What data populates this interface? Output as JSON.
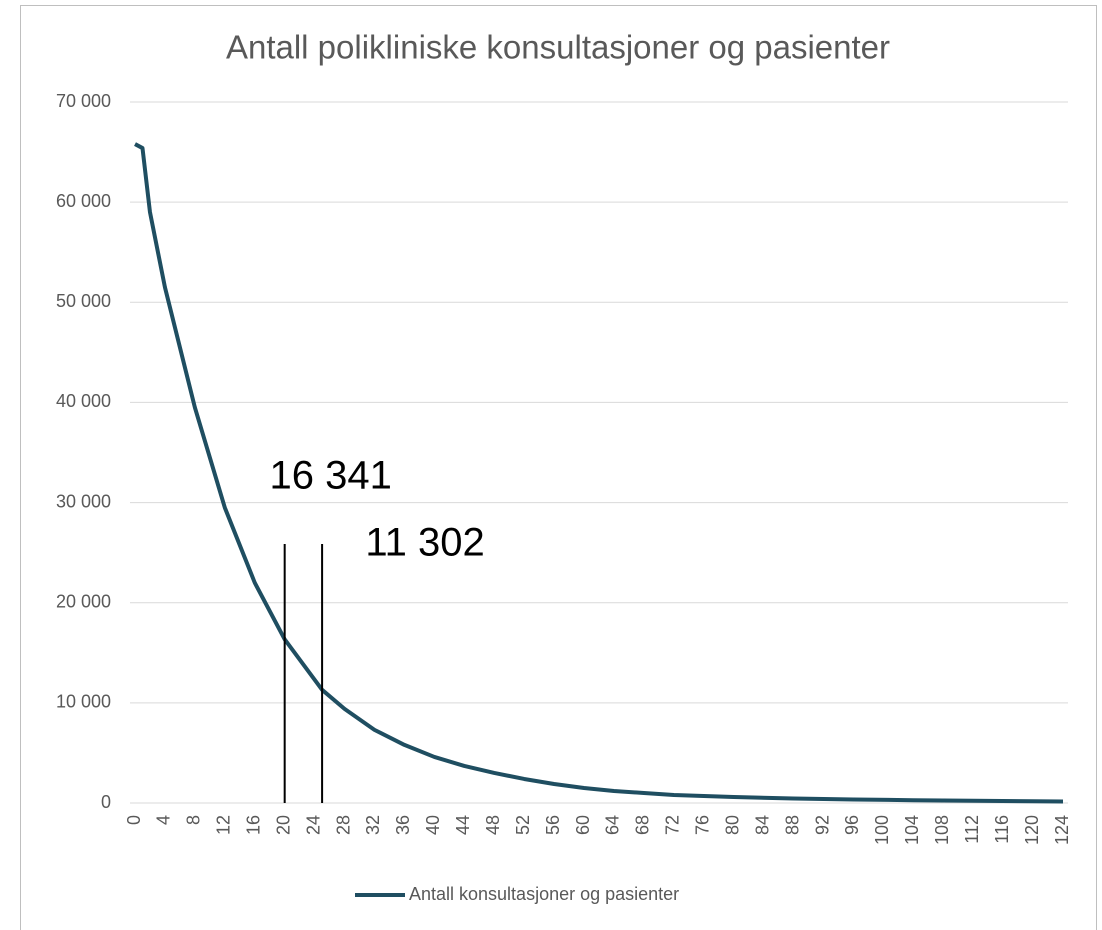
{
  "chart_data": {
    "type": "line",
    "title": "Antall polikliniske konsultasjoner og pasienter",
    "x": [
      0,
      1,
      2,
      4,
      8,
      12,
      16,
      20,
      25,
      28,
      32,
      36,
      40,
      44,
      48,
      52,
      56,
      60,
      64,
      68,
      72,
      80,
      88,
      96,
      104,
      112,
      120,
      124
    ],
    "series": [
      {
        "name": "Antall konsultasjoner og pasienter",
        "color": "#1f4e61",
        "values": [
          65800,
          65400,
          59000,
          51500,
          39500,
          29500,
          22000,
          16341,
          11302,
          9400,
          7300,
          5800,
          4600,
          3700,
          3000,
          2400,
          1900,
          1500,
          1200,
          1000,
          800,
          600,
          450,
          350,
          280,
          220,
          170,
          150
        ]
      }
    ],
    "xlim": [
      0,
      124
    ],
    "xticks": [
      0,
      4,
      8,
      12,
      16,
      20,
      24,
      28,
      32,
      36,
      40,
      44,
      48,
      52,
      56,
      60,
      64,
      68,
      72,
      76,
      80,
      84,
      88,
      92,
      96,
      100,
      104,
      108,
      112,
      116,
      120,
      124
    ],
    "ylim": [
      0,
      70000
    ],
    "yticks": [
      0,
      {
        "value": 10000,
        "label": "10 000"
      },
      {
        "value": 20000,
        "label": "20 000"
      },
      {
        "value": 30000,
        "label": "30 000"
      },
      {
        "value": 40000,
        "label": "40 000"
      },
      {
        "value": 50000,
        "label": "50 000"
      },
      {
        "value": 60000,
        "label": "60 000"
      },
      {
        "value": 70000,
        "label": "70 000"
      }
    ],
    "grid": true,
    "legend": "bottom",
    "annotations": [
      {
        "x": 20,
        "label": "16 341"
      },
      {
        "x": 25,
        "label": "11 302"
      }
    ]
  }
}
